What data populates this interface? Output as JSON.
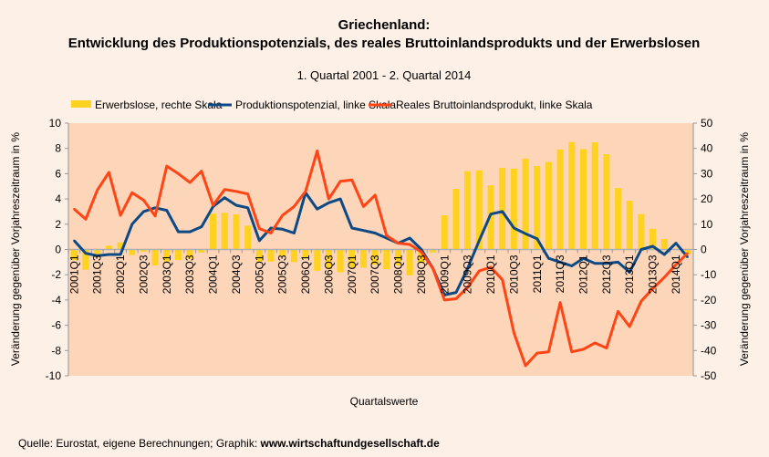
{
  "chart_data": {
    "type": "bar+line",
    "title_line1": "Griechenland:",
    "title_line2": "Entwicklung des Produktionspotenzials, des reales Bruttoinlandsprodukts und der Erwerbslosen",
    "subtitle": "1. Quartal 2001 - 2. Quartal 2014",
    "xlabel": "Quartalswerte",
    "ylabel_left": "Veränderung gegenüber Vorjahreszeitraum in %",
    "ylabel_right": "Veränderung gegenüber Vorjahreszeitraum in %",
    "ylim_left": [
      -10,
      10
    ],
    "ylim_right": [
      -50,
      50
    ],
    "yticks_left": [
      "10",
      "8",
      "6",
      "4",
      "2",
      "0",
      "-2",
      "-4",
      "-6",
      "-8",
      "-10"
    ],
    "yticks_right": [
      "50",
      "40",
      "30",
      "20",
      "10",
      "0",
      "-10",
      "-20",
      "-30",
      "-40",
      "-50"
    ],
    "legend_placement": "top",
    "grid": false,
    "categories": [
      "2001Q1",
      "2001Q2",
      "2001Q3",
      "2001Q4",
      "2002Q1",
      "2002Q2",
      "2002Q3",
      "2002Q4",
      "2003Q1",
      "2003Q2",
      "2003Q3",
      "2003Q4",
      "2004Q1",
      "2004Q2",
      "2004Q3",
      "2004Q4",
      "2005Q1",
      "2005Q2",
      "2005Q3",
      "2005Q4",
      "2006Q1",
      "2006Q2",
      "2006Q3",
      "2006Q4",
      "2007Q1",
      "2007Q2",
      "2007Q3",
      "2007Q4",
      "2008Q1",
      "2008Q2",
      "2008Q3",
      "2008Q4",
      "2009Q1",
      "2009Q2",
      "2009Q3",
      "2009Q4",
      "2010Q1",
      "2010Q2",
      "2010Q3",
      "2010Q4",
      "2011Q1",
      "2011Q2",
      "2011Q3",
      "2011Q4",
      "2012Q1",
      "2012Q2",
      "2012Q3",
      "2012Q4",
      "2013Q1",
      "2013Q2",
      "2013Q3",
      "2013Q4",
      "2014Q1",
      "2014Q2"
    ],
    "series": [
      {
        "name": "Erwerbslose, rechte Skala",
        "type": "bar",
        "axis": "right",
        "color": "#ffd21f",
        "values": [
          -4.2,
          -8,
          -3,
          1.5,
          2.8,
          -2.2,
          -0.8,
          -6.3,
          -4.8,
          -4.2,
          -3.6,
          -1.2,
          14.2,
          14.5,
          13.9,
          9.4,
          -4.8,
          -4.8,
          -2.7,
          -5,
          -3.6,
          -8.4,
          -7.8,
          -9,
          -7.2,
          -7.2,
          -6,
          -7.8,
          -6.3,
          -10.2,
          -5.4,
          -1.2,
          13.5,
          24,
          31,
          31.3,
          25.4,
          32.3,
          32,
          36,
          33,
          34.6,
          39.6,
          42.5,
          39.7,
          42.4,
          37.7,
          24.3,
          19.3,
          14,
          8.2,
          4.2,
          0.3,
          -1.8
        ]
      },
      {
        "name": "Produktionspotenzial, linke Skala",
        "type": "line",
        "axis": "left",
        "color": "#0d4a85",
        "values": [
          0.7,
          -0.3,
          -0.5,
          -0.4,
          -0.4,
          2.0,
          3.0,
          3.3,
          3.1,
          1.4,
          1.4,
          1.8,
          3.4,
          4.1,
          3.5,
          3.3,
          0.7,
          1.7,
          1.6,
          1.3,
          4.5,
          3.2,
          3.7,
          4.0,
          1.7,
          1.5,
          1.3,
          0.9,
          0.5,
          0.9,
          0,
          -1.5,
          -3.6,
          -3.4,
          -1.5,
          0.7,
          2.8,
          3.0,
          1.7,
          1.25,
          0.85,
          -0.7,
          -1.0,
          -1.3,
          -0.7,
          -1.1,
          -1.1,
          -1.0,
          -1.8,
          0,
          0.25,
          -0.4,
          0.5,
          -0.6
        ]
      },
      {
        "name": "Reales Bruttoinlandsprodukt, linke Skala",
        "type": "line",
        "axis": "left",
        "color": "#ff4516",
        "values": [
          3.2,
          2.4,
          4.7,
          6.1,
          2.7,
          4.5,
          3.9,
          2.65,
          6.6,
          6.0,
          5.3,
          6.2,
          3.5,
          4.75,
          4.6,
          4.4,
          1.65,
          1.3,
          2.7,
          3.4,
          4.6,
          7.8,
          4.0,
          5.4,
          5.5,
          3.4,
          4.3,
          1.1,
          0.5,
          0.4,
          -0.2,
          -1.5,
          -4.0,
          -3.9,
          -3.0,
          -1.7,
          -1.4,
          -2.4,
          -6.6,
          -9.2,
          -8.2,
          -8.1,
          -4.2,
          -8.1,
          -7.9,
          -7.4,
          -7.8,
          -4.9,
          -6.1,
          -4.1,
          -3.1,
          -2.2,
          -1.2,
          -0.3
        ]
      }
    ],
    "plot_background": "#fdd5b9"
  },
  "footer": {
    "source_text": "Quelle: Eurostat, eigene Berechnungen; Graphik: ",
    "site": "www.wirtschaftundgesellschaft.de"
  }
}
